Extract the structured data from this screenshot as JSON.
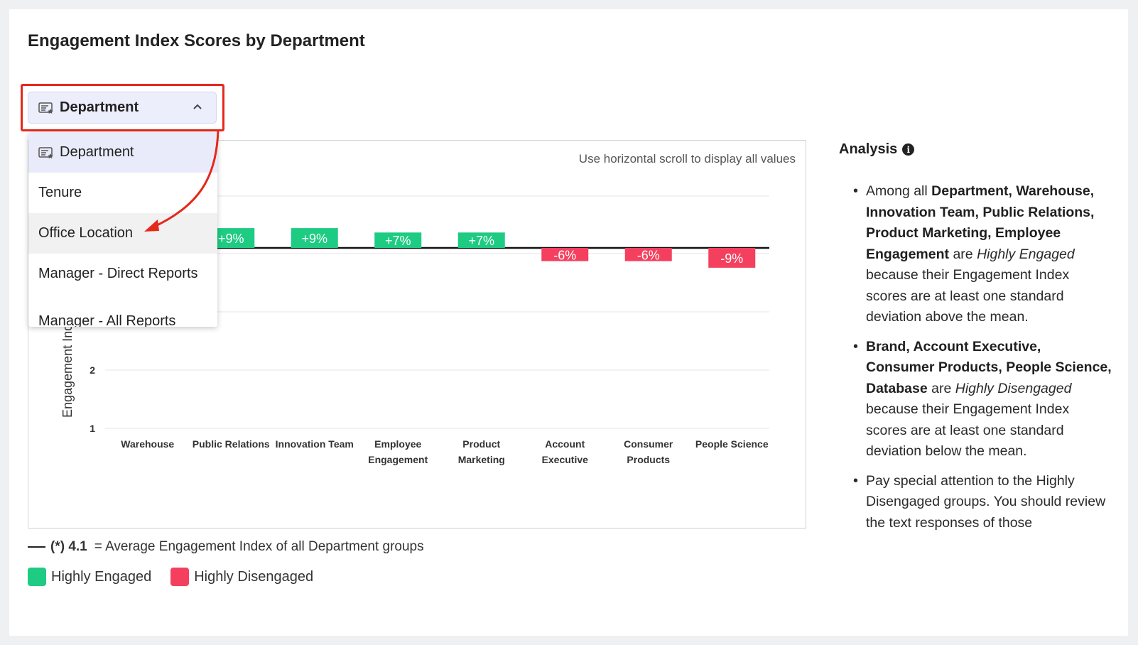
{
  "title": "Engagement Index Scores by Department",
  "dropdown": {
    "selected": "Department",
    "options": [
      "Department",
      "Tenure",
      "Office Location",
      "Manager - Direct Reports",
      "Manager - All Reports"
    ]
  },
  "chart": {
    "scroll_hint": "Use horizontal scroll to display all values",
    "ylabel": "Engagement Ind",
    "colors": {
      "engaged": "#1ecb82",
      "disengaged": "#f4405e"
    }
  },
  "chart_data": {
    "type": "bar",
    "ylabel": "Engagement Index",
    "yticks": [
      1,
      2
    ],
    "baseline": 4.1,
    "categories": [
      [
        "Warehouse"
      ],
      [
        "Public Relations"
      ],
      [
        "Innovation Team"
      ],
      [
        "Employee",
        "Engagement"
      ],
      [
        "Product",
        "Marketing"
      ],
      [
        "Account",
        "Executive"
      ],
      [
        "Consumer",
        "Products"
      ],
      [
        "People Science"
      ]
    ],
    "deltas": [
      null,
      9,
      9,
      7,
      7,
      -6,
      -6,
      -9
    ],
    "labels": [
      null,
      "+9%",
      "+9%",
      "+7%",
      "+7%",
      "-6%",
      "-6%",
      "-9%"
    ]
  },
  "analysis": {
    "title": "Analysis",
    "info_icon": "i",
    "bullet1": {
      "pre": "Among all ",
      "bold": "Department, Warehouse, Innovation Team, Public Relations, Product Marketing, Employee Engagement",
      "mid": " are ",
      "ital": "Highly Engaged",
      "post": " because their Engagement Index scores are at least one standard deviation above the mean."
    },
    "bullet2": {
      "bold": "Brand, Account Executive, Consumer Products, People Science, Database",
      "mid": " are ",
      "ital": "Highly Disengaged",
      "post": " because their Engagement Index scores are at least one standard deviation below the mean."
    },
    "bullet3": "Pay special attention to the Highly Disengaged groups. You should review the text responses of those"
  },
  "footer": {
    "avg_value": "(*) 4.1",
    "avg_text": "= Average Engagement Index of all Department groups"
  },
  "legend": {
    "engaged": "Highly Engaged",
    "disengaged": "Highly Disengaged"
  }
}
